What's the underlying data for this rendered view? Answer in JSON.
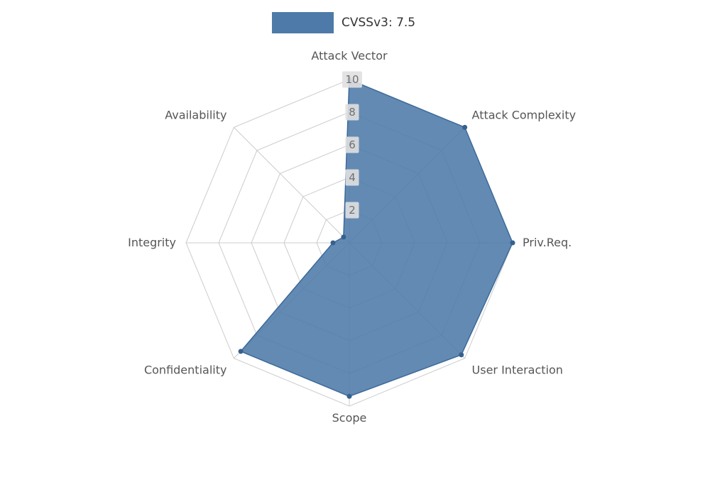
{
  "legend": {
    "label": "CVSSv3: 7.5"
  },
  "chart_data": {
    "type": "radar",
    "title": "CVSSv3: 7.5",
    "categories": [
      "Attack Vector",
      "Attack Complexity",
      "Priv.Req.",
      "User Interaction",
      "Scope",
      "Confidentiality",
      "Integrity",
      "Availability"
    ],
    "series": [
      {
        "name": "CVSSv3: 7.5",
        "values": [
          10,
          10,
          10,
          9.7,
          9.4,
          9.4,
          1.0,
          0.5
        ]
      }
    ],
    "rlim": [
      0,
      10
    ],
    "ticks": [
      2,
      4,
      6,
      8,
      10
    ],
    "grid": true,
    "legend_position": "top-center",
    "colors": {
      "fill": "#4d7aa8",
      "stroke": "#3d6a99",
      "dot": "#35618e",
      "grid": "#cccccc",
      "axis_label": "#555555",
      "tick_text": "#707070",
      "tick_bg": "#e0e0e0",
      "legend_text": "#333333",
      "background": "#ffffff"
    }
  }
}
